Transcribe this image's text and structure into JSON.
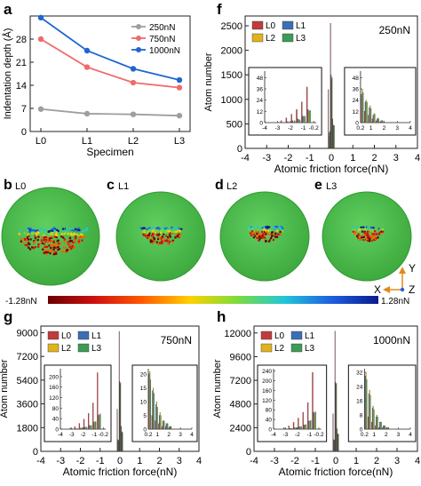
{
  "panels": {
    "a": "a",
    "f": "f",
    "g": "g",
    "h": "h",
    "b": "b",
    "c": "c",
    "d": "d",
    "e": "e",
    "b_tag": "L0",
    "c_tag": "L1",
    "d_tag": "L2",
    "e_tag": "L3"
  },
  "colorbar": {
    "min_label": "-1.28nN",
    "max_label": "1.28nN",
    "stops": [
      "#6b0000",
      "#d01010",
      "#ff5a00",
      "#ffd000",
      "#7ddc3a",
      "#22c7d8",
      "#1f5fe0",
      "#0a1a8c"
    ]
  },
  "axes_glyph": {
    "y": "Y",
    "x": "X",
    "z": "Z"
  },
  "sphere_colors": {
    "body": "#4bbf4b",
    "rim": "#2f9a2f"
  },
  "chart_data": [
    {
      "type": "line",
      "panel": "a",
      "categories": [
        "L0",
        "L1",
        "L2",
        "L3"
      ],
      "xlabel": "Specimen",
      "ylabel": "Indentation depth (Å)",
      "ylim": [
        0,
        35
      ],
      "yticks": [
        "0",
        "7",
        "14",
        "21",
        "28"
      ],
      "ytick_values": [
        0,
        7,
        14,
        21,
        28
      ],
      "series": [
        {
          "name": "250nN",
          "color": "#9e9e9e",
          "values": [
            6.8,
            5.4,
            5.2,
            4.8
          ]
        },
        {
          "name": "750nN",
          "color": "#ef6b6b",
          "values": [
            28.0,
            19.5,
            14.8,
            13.3
          ]
        },
        {
          "name": "1000nN",
          "color": "#1f66d1",
          "values": [
            34.5,
            24.5,
            19.0,
            15.6
          ]
        }
      ]
    },
    {
      "type": "bar",
      "panel": "f",
      "title": "250nN",
      "xlabel": "Atomic friction force(nN)",
      "ylabel": "Atom number",
      "xlim": [
        -4,
        4
      ],
      "ylim": [
        0,
        2700
      ],
      "xticks": [
        "-4",
        "-3",
        "-2",
        "-1",
        "0",
        "1",
        "2",
        "3",
        "4"
      ],
      "xtick_values": [
        -4,
        -3,
        -2,
        -1,
        0,
        1,
        2,
        3,
        4
      ],
      "yticks": [
        "0",
        "500",
        "1000",
        "1500",
        "2000",
        "2500"
      ],
      "ytick_values": [
        0,
        500,
        1000,
        1500,
        2000,
        2500
      ],
      "legend": [
        "L0",
        "L1",
        "L2",
        "L3"
      ],
      "series_colors": [
        "#c23b3b",
        "#3a6fb5",
        "#e0b21f",
        "#3c9c56"
      ],
      "bin_x": [
        -0.1,
        0.0,
        0.1
      ],
      "main": [
        [
          1200,
          2550,
          600
        ],
        [
          320,
          1500,
          480
        ],
        [
          250,
          1400,
          450
        ],
        [
          350,
          1450,
          470
        ]
      ],
      "inset_left": {
        "xlim": [
          -4,
          0
        ],
        "ylim": [
          0,
          55
        ],
        "xticks": [
          "-4",
          "-3",
          "-2",
          "-1",
          "-0.2"
        ],
        "xtick_values": [
          -4,
          -3,
          -2,
          -1,
          -0.2
        ],
        "yticks": [
          "0",
          "12",
          "24",
          "36",
          "48"
        ],
        "ytick_values": [
          0,
          12,
          24,
          36,
          48
        ],
        "x": [
          -2.6,
          -2.2,
          -1.8,
          -1.4,
          -1.0,
          -0.6
        ],
        "values": [
          [
            2,
            5,
            9,
            14,
            22,
            38
          ],
          [
            0,
            1,
            2,
            4,
            7,
            14
          ],
          [
            0,
            1,
            1,
            3,
            6,
            12
          ],
          [
            0,
            0,
            2,
            3,
            7,
            13
          ]
        ]
      },
      "inset_right": {
        "xlim": [
          0.2,
          4
        ],
        "ylim": [
          0,
          55
        ],
        "xticks": [
          "0.2",
          "1",
          "2",
          "3",
          "4"
        ],
        "xtick_values": [
          0.2,
          1,
          2,
          3,
          4
        ],
        "yticks": [
          "0",
          "12",
          "24",
          "36",
          "48"
        ],
        "ytick_values": [
          0,
          12,
          24,
          36,
          48
        ],
        "x": [
          0.3,
          0.6,
          0.9,
          1.2,
          1.5,
          1.8
        ],
        "values": [
          [
            18,
            12,
            8,
            4,
            2,
            1
          ],
          [
            30,
            22,
            16,
            8,
            4,
            2
          ],
          [
            36,
            24,
            18,
            10,
            5,
            2
          ],
          [
            32,
            22,
            15,
            9,
            4,
            2
          ]
        ]
      }
    },
    {
      "type": "bar",
      "panel": "g",
      "title": "750nN",
      "xlabel": "Atomic friction force(nN)",
      "ylabel": "Atom number",
      "xlim": [
        -4,
        4
      ],
      "ylim": [
        0,
        9500
      ],
      "xticks": [
        "-4",
        "-3",
        "-2",
        "-1",
        "0",
        "1",
        "2",
        "3",
        "4"
      ],
      "xtick_values": [
        -4,
        -3,
        -2,
        -1,
        0,
        1,
        2,
        3,
        4
      ],
      "yticks": [
        "0",
        "1800",
        "3600",
        "5400",
        "7200",
        "9000"
      ],
      "ytick_values": [
        0,
        1800,
        3600,
        5400,
        7200,
        9000
      ],
      "legend": [
        "L0",
        "L1",
        "L2",
        "L3"
      ],
      "series_colors": [
        "#c23b3b",
        "#3a6fb5",
        "#e0b21f",
        "#3c9c56"
      ],
      "bin_x": [
        -0.1,
        0.0,
        0.1
      ],
      "main": [
        [
          3200,
          9100,
          1900
        ],
        [
          900,
          5300,
          1500
        ],
        [
          800,
          5100,
          1400
        ],
        [
          850,
          5200,
          1450
        ]
      ],
      "inset_left": {
        "xlim": [
          -4,
          0
        ],
        "ylim": [
          0,
          230
        ],
        "xticks": [
          "-4",
          "-3",
          "-2",
          "-1",
          "-0.2"
        ],
        "xtick_values": [
          -4,
          -3,
          -2,
          -1,
          -0.2
        ],
        "yticks": [
          "0",
          "40",
          "80",
          "120",
          "160",
          "200"
        ],
        "ytick_values": [
          0,
          40,
          80,
          120,
          160,
          200
        ],
        "x": [
          -3.0,
          -2.6,
          -2.2,
          -1.8,
          -1.4,
          -1.0,
          -0.6
        ],
        "values": [
          [
            4,
            10,
            22,
            38,
            60,
            100,
            215
          ],
          [
            1,
            2,
            4,
            8,
            14,
            28,
            55
          ],
          [
            1,
            2,
            4,
            7,
            13,
            26,
            52
          ],
          [
            1,
            2,
            5,
            8,
            15,
            29,
            58
          ]
        ]
      },
      "inset_right": {
        "xlim": [
          0.2,
          4
        ],
        "ylim": [
          0,
          22
        ],
        "xticks": [
          "0.2",
          "1",
          "2",
          "3",
          "4"
        ],
        "xtick_values": [
          0.2,
          1,
          2,
          3,
          4
        ],
        "yticks": [
          "0",
          "5",
          "10",
          "15",
          "20"
        ],
        "ytick_values": [
          0,
          5,
          10,
          15,
          20
        ],
        "x": [
          0.3,
          0.6,
          0.9,
          1.2,
          1.5,
          1.8,
          2.1
        ],
        "values": [
          [
            8,
            5,
            3,
            2,
            1,
            1,
            0
          ],
          [
            20,
            14,
            9,
            5,
            3,
            2,
            1
          ],
          [
            21,
            15,
            10,
            6,
            3,
            2,
            1
          ],
          [
            18,
            13,
            8,
            5,
            3,
            2,
            1
          ]
        ]
      }
    },
    {
      "type": "bar",
      "panel": "h",
      "title": "1000nN",
      "xlabel": "Atomic friction force(nN)",
      "ylabel": "Atom number",
      "xlim": [
        -4,
        4
      ],
      "ylim": [
        0,
        12700
      ],
      "xticks": [
        "-4",
        "-3",
        "-2",
        "-1",
        "0",
        "1",
        "2",
        "3",
        "4"
      ],
      "xtick_values": [
        -4,
        -3,
        -2,
        -1,
        0,
        1,
        2,
        3,
        4
      ],
      "yticks": [
        "0",
        "2400",
        "4800",
        "7200",
        "9600",
        "12000"
      ],
      "ytick_values": [
        0,
        2400,
        4800,
        7200,
        9600,
        12000
      ],
      "legend": [
        "L0",
        "L1",
        "L2",
        "L3"
      ],
      "series_colors": [
        "#c23b3b",
        "#3a6fb5",
        "#e0b21f",
        "#3c9c56"
      ],
      "bin_x": [
        -0.1,
        0.0,
        0.1
      ],
      "main": [
        [
          3800,
          12200,
          2300
        ],
        [
          1200,
          7000,
          1800
        ],
        [
          1100,
          6800,
          1700
        ],
        [
          1150,
          6900,
          1750
        ]
      ],
      "inset_left": {
        "xlim": [
          -4,
          0
        ],
        "ylim": [
          0,
          250
        ],
        "xticks": [
          "-4",
          "-3",
          "-2",
          "-1",
          "-0.2"
        ],
        "xtick_values": [
          -4,
          -3,
          -2,
          -1,
          -0.2
        ],
        "yticks": [
          "0",
          "40",
          "80",
          "120",
          "160",
          "200",
          "240"
        ],
        "ytick_values": [
          0,
          40,
          80,
          120,
          160,
          200,
          240
        ],
        "x": [
          -3.0,
          -2.6,
          -2.2,
          -1.8,
          -1.4,
          -1.0,
          -0.6
        ],
        "values": [
          [
            6,
            14,
            28,
            46,
            70,
            110,
            235
          ],
          [
            1,
            3,
            6,
            10,
            18,
            34,
            70
          ],
          [
            1,
            3,
            5,
            9,
            17,
            32,
            66
          ],
          [
            1,
            3,
            6,
            11,
            19,
            36,
            72
          ]
        ]
      },
      "inset_right": {
        "xlim": [
          0.2,
          4
        ],
        "ylim": [
          0,
          34
        ],
        "xticks": [
          "0.2",
          "1",
          "2",
          "3",
          "4"
        ],
        "xtick_values": [
          0.2,
          1,
          2,
          3,
          4
        ],
        "yticks": [
          "0",
          "8",
          "16",
          "24",
          "32"
        ],
        "ytick_values": [
          0,
          8,
          16,
          24,
          32
        ],
        "x": [
          0.3,
          0.6,
          0.9,
          1.2,
          1.5,
          1.8,
          2.1
        ],
        "values": [
          [
            12,
            7,
            4,
            2,
            1,
            1,
            0
          ],
          [
            30,
            20,
            12,
            7,
            4,
            2,
            1
          ],
          [
            32,
            22,
            13,
            8,
            4,
            2,
            1
          ],
          [
            28,
            19,
            11,
            7,
            4,
            2,
            1
          ]
        ]
      }
    }
  ]
}
